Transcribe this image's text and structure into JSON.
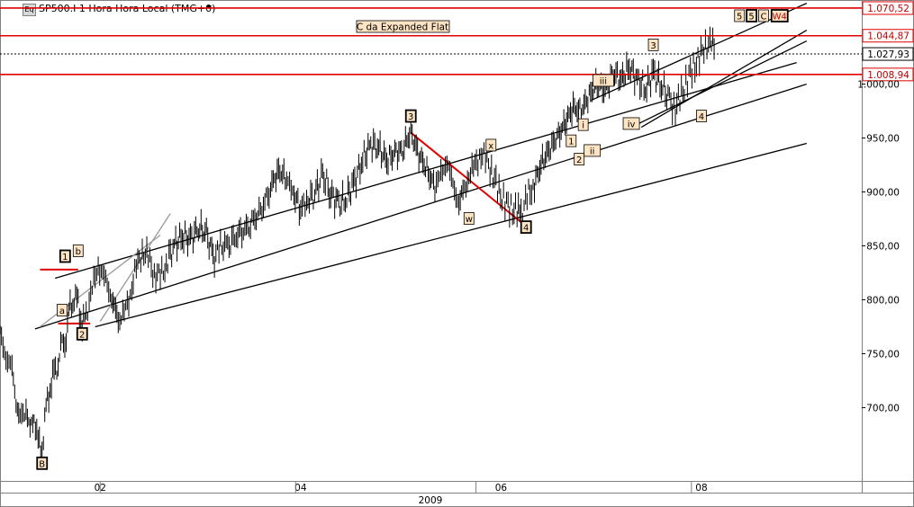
{
  "header": {
    "icon_text": "Eq",
    "title": "SP500.I 1 Hora Hora Local (TMG+0)"
  },
  "chart_data": {
    "type": "line",
    "title": "SP500.I 1 Hora Hora Local (TMG+0)",
    "annotation_box": "C da Expanded Flat",
    "y_axis": {
      "range": [
        632,
        1078
      ],
      "ticks": [
        700,
        750,
        800,
        850,
        900,
        950,
        1000
      ],
      "tick_labels": [
        "700,00",
        "750,00",
        "800,00",
        "850,00",
        "900,00",
        "950,00",
        "1.000,00"
      ]
    },
    "x_axis": {
      "month_labels": [
        {
          "label": "02",
          "month": 2.0
        },
        {
          "label": "04",
          "month": 4.0
        },
        {
          "label": "06",
          "month": 6.0
        },
        {
          "label": "08",
          "month": 8.0
        }
      ],
      "year_label": "2009",
      "range": [
        1.0,
        9.6
      ]
    },
    "price_levels": [
      {
        "value": 1070.52,
        "label": "1.070,52",
        "color": "#e00000",
        "style": "solid"
      },
      {
        "value": 1044.87,
        "label": "1.044,87",
        "color": "#e00000",
        "style": "solid"
      },
      {
        "value": 1027.93,
        "label": "1.027,93",
        "color": "#000000",
        "style": "dotted"
      },
      {
        "value": 1008.94,
        "label": "1.008,94",
        "color": "#e00000",
        "style": "solid"
      }
    ],
    "series": [
      {
        "points": [
          [
            1.0,
            768
          ],
          [
            1.06,
            748
          ],
          [
            1.12,
            735
          ],
          [
            1.16,
            705
          ],
          [
            1.2,
            690
          ],
          [
            1.26,
            700
          ],
          [
            1.3,
            680
          ],
          [
            1.34,
            690
          ],
          [
            1.38,
            670
          ],
          [
            1.42,
            660
          ],
          [
            1.46,
            700
          ],
          [
            1.5,
            720
          ],
          [
            1.54,
            730
          ],
          [
            1.58,
            745
          ],
          [
            1.62,
            755
          ],
          [
            1.66,
            770
          ],
          [
            1.7,
            790
          ],
          [
            1.74,
            805
          ],
          [
            1.78,
            795
          ],
          [
            1.82,
            778
          ],
          [
            1.86,
            785
          ],
          [
            1.92,
            812
          ],
          [
            1.98,
            830
          ],
          [
            2.04,
            822
          ],
          [
            2.1,
            805
          ],
          [
            2.14,
            795
          ],
          [
            2.18,
            780
          ],
          [
            2.24,
            788
          ],
          [
            2.3,
            805
          ],
          [
            2.36,
            830
          ],
          [
            2.42,
            845
          ],
          [
            2.48,
            838
          ],
          [
            2.54,
            825
          ],
          [
            2.6,
            820
          ],
          [
            2.66,
            835
          ],
          [
            2.74,
            850
          ],
          [
            2.82,
            860
          ],
          [
            2.9,
            855
          ],
          [
            2.98,
            868
          ],
          [
            3.06,
            860
          ],
          [
            3.14,
            840
          ],
          [
            3.2,
            848
          ],
          [
            3.3,
            855
          ],
          [
            3.4,
            860
          ],
          [
            3.5,
            872
          ],
          [
            3.6,
            880
          ],
          [
            3.7,
            905
          ],
          [
            3.78,
            920
          ],
          [
            3.86,
            912
          ],
          [
            3.92,
            900
          ],
          [
            4.0,
            885
          ],
          [
            4.06,
            890
          ],
          [
            4.14,
            900
          ],
          [
            4.22,
            915
          ],
          [
            4.3,
            900
          ],
          [
            4.38,
            888
          ],
          [
            4.46,
            895
          ],
          [
            4.54,
            910
          ],
          [
            4.62,
            930
          ],
          [
            4.7,
            945
          ],
          [
            4.78,
            940
          ],
          [
            4.86,
            930
          ],
          [
            4.94,
            935
          ],
          [
            5.02,
            940
          ],
          [
            5.1,
            955
          ],
          [
            5.18,
            935
          ],
          [
            5.26,
            920
          ],
          [
            5.34,
            905
          ],
          [
            5.4,
            915
          ],
          [
            5.46,
            930
          ],
          [
            5.52,
            905
          ],
          [
            5.58,
            890
          ],
          [
            5.62,
            900
          ],
          [
            5.68,
            915
          ],
          [
            5.74,
            925
          ],
          [
            5.8,
            935
          ],
          [
            5.86,
            930
          ],
          [
            5.92,
            915
          ],
          [
            5.98,
            900
          ],
          [
            6.04,
            890
          ],
          [
            6.1,
            885
          ],
          [
            6.16,
            882
          ],
          [
            6.2,
            878
          ],
          [
            6.26,
            895
          ],
          [
            6.32,
            905
          ],
          [
            6.4,
            925
          ],
          [
            6.48,
            940
          ],
          [
            6.56,
            950
          ],
          [
            6.64,
            965
          ],
          [
            6.72,
            978
          ],
          [
            6.8,
            975
          ],
          [
            6.88,
            990
          ],
          [
            6.96,
            1000
          ],
          [
            7.04,
            995
          ],
          [
            7.12,
            1010
          ],
          [
            7.2,
            1005
          ],
          [
            7.28,
            1015
          ],
          [
            7.36,
            1005
          ],
          [
            7.44,
            995
          ],
          [
            7.52,
            1010
          ],
          [
            7.6,
            1000
          ],
          [
            7.68,
            985
          ],
          [
            7.74,
            978
          ],
          [
            7.8,
            990
          ],
          [
            7.86,
            1005
          ],
          [
            7.92,
            1015
          ],
          [
            7.98,
            1025
          ],
          [
            8.04,
            1035
          ],
          [
            8.1,
            1040
          ],
          [
            8.14,
            1030
          ]
        ]
      }
    ],
    "trendlines": [
      {
        "from": [
          1.55,
          820
        ],
        "to": [
          8.95,
          1020
        ],
        "color": "#000000"
      },
      {
        "from": [
          1.35,
          773
        ],
        "to": [
          9.05,
          1000
        ],
        "color": "#000000"
      },
      {
        "from": [
          1.95,
          775
        ],
        "to": [
          9.05,
          945
        ],
        "color": "#000000"
      },
      {
        "from": [
          6.9,
          985
        ],
        "to": [
          9.05,
          1075
        ],
        "color": "#000000"
      },
      {
        "from": [
          7.4,
          960
        ],
        "to": [
          9.05,
          1050
        ],
        "color": "#000000"
      },
      {
        "from": [
          7.3,
          960
        ],
        "to": [
          9.05,
          1040
        ],
        "color": "#000000"
      },
      {
        "from": [
          2.0,
          780
        ],
        "to": [
          2.7,
          880
        ],
        "color": "#999999"
      },
      {
        "from": [
          1.4,
          775
        ],
        "to": [
          2.6,
          860
        ],
        "color": "#999999"
      },
      {
        "from": [
          5.1,
          955
        ],
        "to": [
          6.2,
          872
        ],
        "color": "#e00000",
        "width": 2
      }
    ],
    "markers": [
      {
        "from": [
          1.4,
          828
        ],
        "to": [
          1.78,
          828
        ],
        "color": "#e00000",
        "width": 2
      },
      {
        "from": [
          1.58,
          778
        ],
        "to": [
          1.9,
          778
        ],
        "color": "#e00000",
        "width": 2
      }
    ],
    "wave_labels": [
      {
        "text": "B",
        "x": 1.42,
        "y": 648,
        "style": "boxed-bold"
      },
      {
        "text": "1",
        "x": 1.65,
        "y": 840,
        "style": "boxed-bold"
      },
      {
        "text": "b",
        "x": 1.78,
        "y": 845,
        "style": "boxed"
      },
      {
        "text": "a",
        "x": 1.62,
        "y": 790,
        "style": "boxed"
      },
      {
        "text": "2",
        "x": 1.82,
        "y": 768,
        "style": "boxed-bold"
      },
      {
        "text": "3",
        "x": 5.1,
        "y": 970,
        "style": "boxed-bold"
      },
      {
        "text": "x",
        "x": 5.9,
        "y": 943,
        "style": "boxed"
      },
      {
        "text": "w",
        "x": 5.68,
        "y": 875,
        "style": "boxed"
      },
      {
        "text": "4",
        "x": 6.25,
        "y": 867,
        "style": "boxed-bold"
      },
      {
        "text": "1",
        "x": 6.7,
        "y": 947,
        "style": "boxed"
      },
      {
        "text": "i",
        "x": 6.82,
        "y": 962,
        "style": "boxed"
      },
      {
        "text": "2",
        "x": 6.78,
        "y": 930,
        "style": "boxed"
      },
      {
        "text": "ii",
        "x": 6.91,
        "y": 938,
        "style": "boxed"
      },
      {
        "text": "iii",
        "x": 7.02,
        "y": 1003,
        "style": "boxed"
      },
      {
        "text": "iv",
        "x": 7.3,
        "y": 963,
        "style": "boxed"
      },
      {
        "text": "3",
        "x": 7.52,
        "y": 1036,
        "style": "boxed"
      },
      {
        "text": "4",
        "x": 8.0,
        "y": 970,
        "style": "boxed"
      },
      {
        "text": "5",
        "x": 8.38,
        "y": 1063,
        "style": "boxed"
      },
      {
        "text": "5",
        "x": 8.5,
        "y": 1063,
        "style": "boxed-bold"
      },
      {
        "text": "C",
        "x": 8.62,
        "y": 1063,
        "style": "boxed"
      },
      {
        "text": "W4",
        "x": 8.78,
        "y": 1063,
        "style": "boxed-red"
      }
    ]
  }
}
